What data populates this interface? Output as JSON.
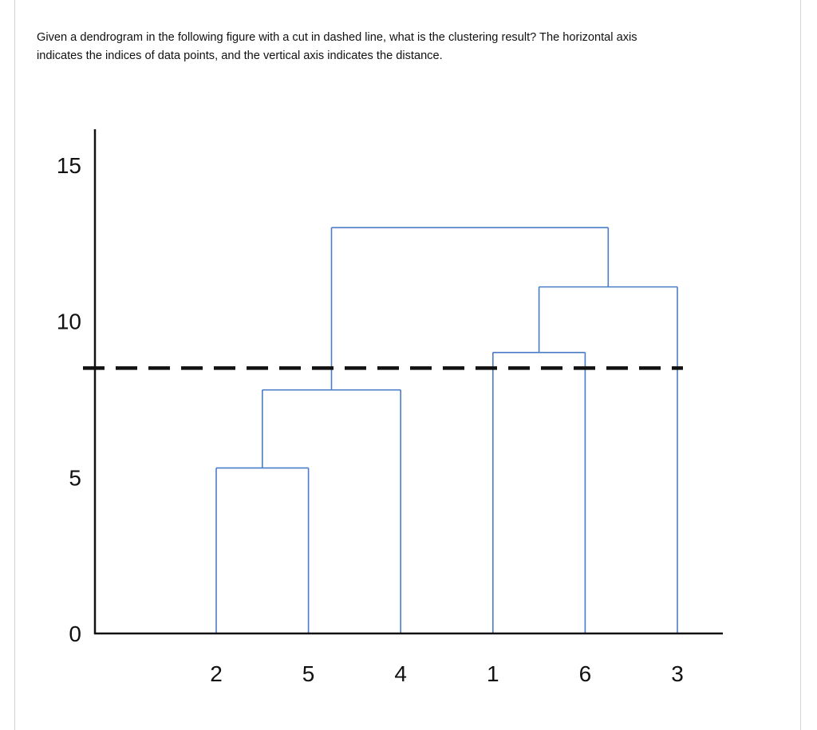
{
  "question": {
    "line1": "Given a dendrogram in the following figure with a cut in dashed line, what is the clustering result? The horizontal axis",
    "line2": "indicates the indices of data points, and the vertical axis indicates the distance."
  },
  "chart_data": {
    "type": "dendrogram",
    "title": "",
    "xlabel": "",
    "ylabel": "",
    "ylim": [
      0,
      15
    ],
    "yticks": [
      0,
      5,
      10,
      15
    ],
    "leaves": [
      "2",
      "5",
      "4",
      "1",
      "6",
      "3"
    ],
    "merges": [
      {
        "left": [
          "2"
        ],
        "right": [
          "5"
        ],
        "height": 5.3
      },
      {
        "left": [
          "2",
          "5"
        ],
        "right": [
          "4"
        ],
        "height": 7.8
      },
      {
        "left": [
          "1"
        ],
        "right": [
          "6"
        ],
        "height": 9.0
      },
      {
        "left": [
          "1",
          "6"
        ],
        "right": [
          "3"
        ],
        "height": 11.1
      },
      {
        "left": [
          "2",
          "5",
          "4"
        ],
        "right": [
          "1",
          "6",
          "3"
        ],
        "height": 13.0
      }
    ],
    "cut_height": 8.5,
    "colors": {
      "tree": "#4a7cc7",
      "axis": "#111111",
      "cut": "#111111"
    }
  }
}
